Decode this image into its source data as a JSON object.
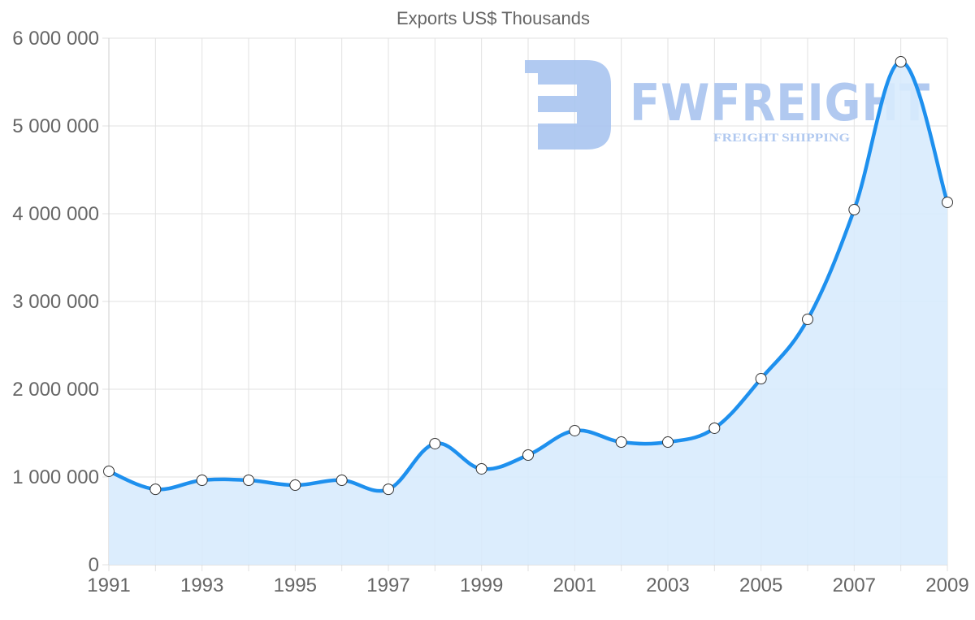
{
  "chart_data": {
    "type": "line",
    "title": "Exports US$ Thousands",
    "xlabel": "",
    "ylabel": "",
    "x": [
      1991,
      1992,
      1993,
      1994,
      1995,
      1996,
      1997,
      1998,
      1999,
      2000,
      2001,
      2002,
      2003,
      2004,
      2005,
      2006,
      2007,
      2008,
      2009
    ],
    "series": [
      {
        "name": "Exports US$ Thousands",
        "values": [
          1065000,
          860000,
          963000,
          963000,
          907000,
          963000,
          860000,
          1380000,
          1093000,
          1250000,
          1528000,
          1398000,
          1398000,
          1556000,
          2120000,
          2796000,
          4046000,
          5731000,
          4130000
        ],
        "line_color": "#1e90ee",
        "fill_color": "#d8ebfd",
        "fill": true,
        "point_style": "white-circle"
      }
    ],
    "x_tick_labels": [
      "1991",
      "1993",
      "1995",
      "1997",
      "1999",
      "2001",
      "2003",
      "2005",
      "2007",
      "2009"
    ],
    "y_tick_labels": [
      "0",
      "1 000 000",
      "2 000 000",
      "3 000 000",
      "4 000 000",
      "5 000 000",
      "6 000 000"
    ],
    "ylim": [
      0,
      6000000
    ],
    "xlim": [
      1991,
      2009
    ],
    "grid": true,
    "legend": "none"
  },
  "watermark": {
    "brand": "FWFREIGHT",
    "tagline": "FREIGHT SHIPPING"
  }
}
